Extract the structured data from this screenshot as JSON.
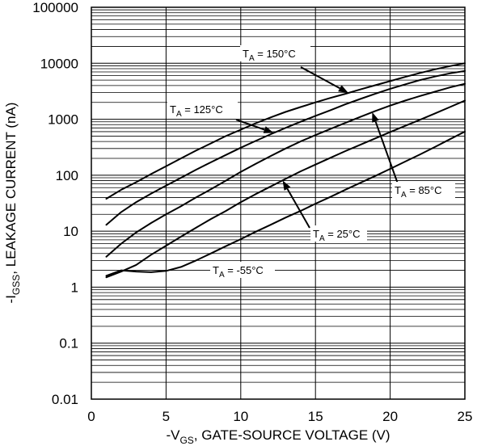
{
  "chart_data": {
    "type": "line",
    "title": "",
    "xlabel": {
      "prefix": "-V",
      "sub": "GS",
      "suffix": ", GATE-SOURCE VOLTAGE (V)"
    },
    "ylabel": {
      "prefix": "-I",
      "sub": "GSS",
      "suffix": ", LEAKAGE CURRENT (nA)"
    },
    "xlim": [
      0,
      25
    ],
    "ylim": [
      0.01,
      100000
    ],
    "yscale": "log",
    "grid": true,
    "x_ticks": [
      "0",
      "5",
      "10",
      "15",
      "20",
      "25"
    ],
    "y_ticks": [
      "0.01",
      "0.1",
      "1",
      "10",
      "100",
      "1000",
      "10000",
      "100000"
    ],
    "series": [
      {
        "name": "T_A = 150°C",
        "label": {
          "base": "T",
          "sub": "A",
          "rest": " = 150°C"
        },
        "points": [
          [
            1,
            38
          ],
          [
            2,
            55
          ],
          [
            3,
            75
          ],
          [
            4,
            105
          ],
          [
            5,
            145
          ],
          [
            6,
            200
          ],
          [
            7,
            275
          ],
          [
            8,
            370
          ],
          [
            9,
            500
          ],
          [
            10,
            650
          ],
          [
            11,
            850
          ],
          [
            12,
            1080
          ],
          [
            13,
            1350
          ],
          [
            14,
            1650
          ],
          [
            15,
            2000
          ],
          [
            16,
            2400
          ],
          [
            17,
            2850
          ],
          [
            18,
            3400
          ],
          [
            19,
            4050
          ],
          [
            20,
            4800
          ],
          [
            21,
            5700
          ],
          [
            22,
            6700
          ],
          [
            23,
            7800
          ],
          [
            24,
            8900
          ],
          [
            25,
            10000
          ]
        ]
      },
      {
        "name": "T_A = 125°C",
        "label": {
          "base": "T",
          "sub": "A",
          "rest": " = 125°C"
        },
        "points": [
          [
            1,
            13
          ],
          [
            2,
            22
          ],
          [
            3,
            33
          ],
          [
            4,
            47
          ],
          [
            5,
            65
          ],
          [
            6,
            90
          ],
          [
            7,
            125
          ],
          [
            8,
            170
          ],
          [
            9,
            230
          ],
          [
            10,
            310
          ],
          [
            11,
            410
          ],
          [
            12,
            540
          ],
          [
            13,
            700
          ],
          [
            14,
            900
          ],
          [
            15,
            1150
          ],
          [
            16,
            1450
          ],
          [
            17,
            1850
          ],
          [
            18,
            2300
          ],
          [
            19,
            2850
          ],
          [
            20,
            3500
          ],
          [
            21,
            4200
          ],
          [
            22,
            5000
          ],
          [
            23,
            5800
          ],
          [
            24,
            6600
          ],
          [
            25,
            7300
          ]
        ]
      },
      {
        "name": "T_A = 85°C",
        "label": {
          "base": "T",
          "sub": "A",
          "rest": " = 85°C"
        },
        "points": [
          [
            1,
            3.5
          ],
          [
            2,
            6
          ],
          [
            3,
            9.5
          ],
          [
            4,
            14
          ],
          [
            5,
            20
          ],
          [
            6,
            28
          ],
          [
            7,
            40
          ],
          [
            8,
            56
          ],
          [
            9,
            80
          ],
          [
            10,
            115
          ],
          [
            11,
            160
          ],
          [
            12,
            220
          ],
          [
            13,
            300
          ],
          [
            14,
            400
          ],
          [
            15,
            520
          ],
          [
            16,
            670
          ],
          [
            17,
            860
          ],
          [
            18,
            1100
          ],
          [
            19,
            1400
          ],
          [
            20,
            1750
          ],
          [
            21,
            2150
          ],
          [
            22,
            2600
          ],
          [
            23,
            3100
          ],
          [
            24,
            3700
          ],
          [
            25,
            4300
          ]
        ]
      },
      {
        "name": "T_A = 25°C",
        "label": {
          "base": "T",
          "sub": "A",
          "rest": " = 25°C"
        },
        "points": [
          [
            1,
            1.5
          ],
          [
            2,
            1.9
          ],
          [
            3,
            2.5
          ],
          [
            4,
            3.8
          ],
          [
            5,
            5.5
          ],
          [
            6,
            8
          ],
          [
            7,
            11.5
          ],
          [
            8,
            16.5
          ],
          [
            9,
            23
          ],
          [
            10,
            33
          ],
          [
            11,
            46
          ],
          [
            12,
            63
          ],
          [
            13,
            86
          ],
          [
            14,
            117
          ],
          [
            15,
            155
          ],
          [
            16,
            205
          ],
          [
            17,
            270
          ],
          [
            18,
            350
          ],
          [
            19,
            455
          ],
          [
            20,
            590
          ],
          [
            21,
            760
          ],
          [
            22,
            980
          ],
          [
            23,
            1270
          ],
          [
            24,
            1650
          ],
          [
            25,
            2150
          ]
        ]
      },
      {
        "name": "T_A = -55°C",
        "label": {
          "base": "T",
          "sub": "A",
          "rest": " = -55°C"
        },
        "points": [
          [
            1,
            1.6
          ],
          [
            2,
            2
          ],
          [
            3,
            1.9
          ],
          [
            4,
            1.85
          ],
          [
            5,
            1.95
          ],
          [
            6,
            2.3
          ],
          [
            7,
            3
          ],
          [
            8,
            4
          ],
          [
            9,
            5.4
          ],
          [
            10,
            7.2
          ],
          [
            11,
            9.8
          ],
          [
            12,
            13
          ],
          [
            13,
            17.5
          ],
          [
            14,
            23
          ],
          [
            15,
            31
          ],
          [
            16,
            41
          ],
          [
            17,
            55
          ],
          [
            18,
            73
          ],
          [
            19,
            97
          ],
          [
            20,
            130
          ],
          [
            21,
            175
          ],
          [
            22,
            235
          ],
          [
            23,
            320
          ],
          [
            24,
            440
          ],
          [
            25,
            600
          ]
        ]
      }
    ]
  }
}
